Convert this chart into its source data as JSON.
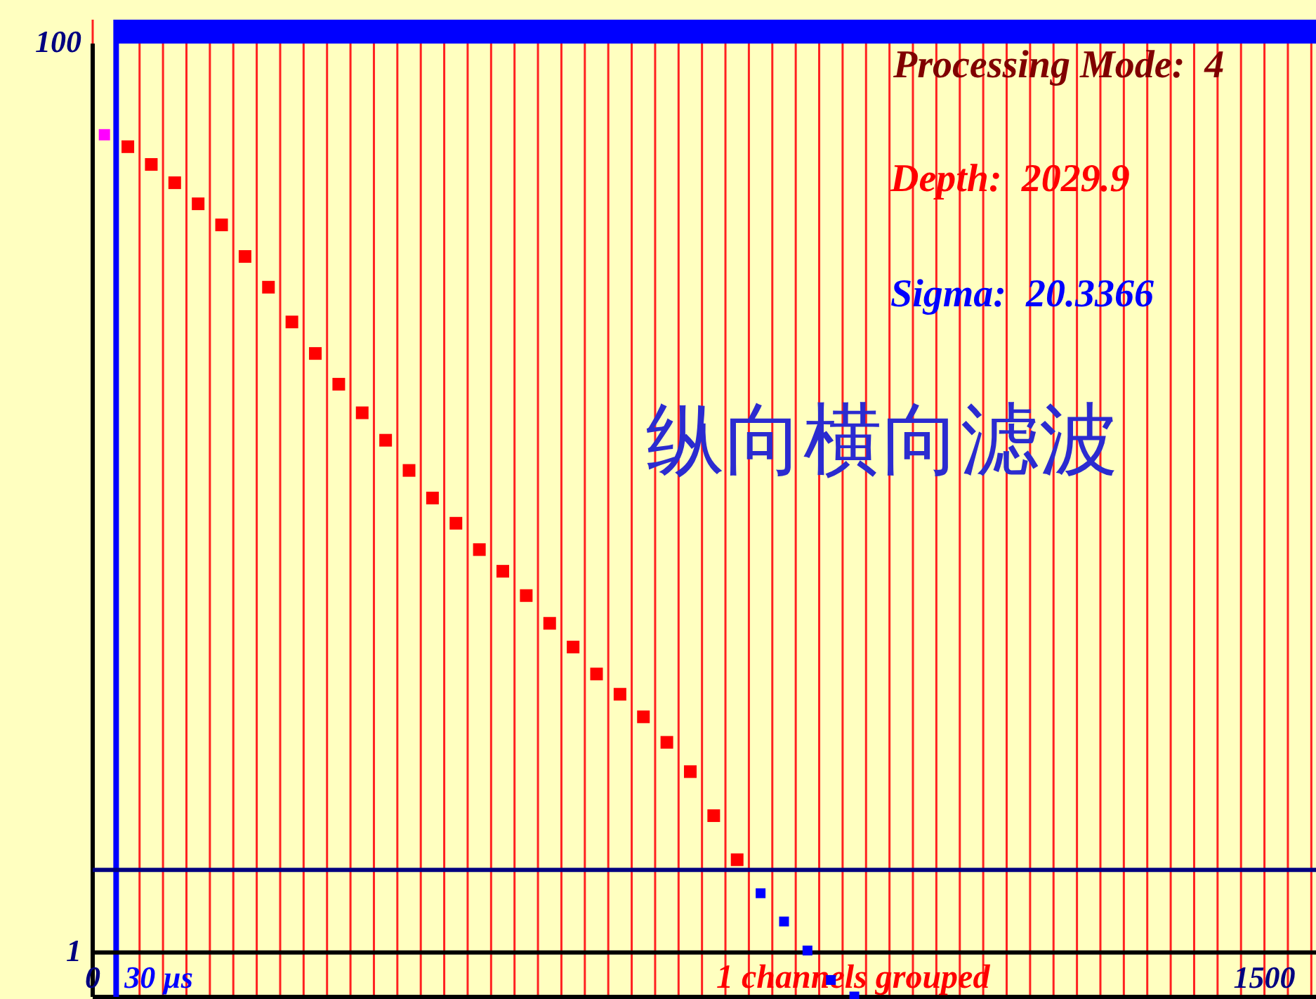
{
  "chart_data": {
    "type": "scatter",
    "title": "纵向横向滤波",
    "annotations": [
      "Processing Mode:  4",
      "Depth:  2029.9",
      "Sigma:  20.3366",
      "1 channels grouped"
    ],
    "xlim": [
      0,
      1566
    ],
    "ylim": [
      0.79,
      100
    ],
    "log": "y",
    "xticks": [
      0,
      {
        "value": 30,
        "label": null
      },
      {
        "value": 60,
        "label": null
      },
      {
        "value": 90,
        "label": null
      },
      {
        "value": 120,
        "label": null
      },
      {
        "value": 150,
        "label": null
      },
      {
        "value": 180,
        "label": null
      },
      {
        "value": 210,
        "label": null
      },
      {
        "value": 240,
        "label": null
      },
      {
        "value": 270,
        "label": null
      },
      {
        "value": 300,
        "label": null
      },
      {
        "value": 330,
        "label": null
      },
      {
        "value": 360,
        "label": null
      },
      {
        "value": 390,
        "label": null
      },
      {
        "value": 420,
        "label": null
      },
      {
        "value": 450,
        "label": null
      },
      {
        "value": 480,
        "label": null
      },
      {
        "value": 510,
        "label": null
      },
      {
        "value": 540,
        "label": null
      },
      {
        "value": 570,
        "label": null
      },
      {
        "value": 600,
        "label": null
      },
      {
        "value": 630,
        "label": null
      },
      {
        "value": 660,
        "label": null
      },
      {
        "value": 690,
        "label": null
      },
      {
        "value": 720,
        "label": null
      },
      {
        "value": 750,
        "label": null
      },
      {
        "value": 780,
        "label": null
      },
      {
        "value": 810,
        "label": null
      },
      {
        "value": 840,
        "label": null
      },
      {
        "value": 870,
        "label": null
      },
      {
        "value": 900,
        "label": null
      },
      {
        "value": 930,
        "label": null
      },
      {
        "value": 960,
        "label": null
      },
      {
        "value": 990,
        "label": null
      },
      {
        "value": 1020,
        "label": null
      },
      {
        "value": 1050,
        "label": null
      },
      {
        "value": 1080,
        "label": null
      },
      {
        "value": 1110,
        "label": null
      },
      {
        "value": 1140,
        "label": null
      },
      {
        "value": 1170,
        "label": null
      },
      {
        "value": 1200,
        "label": null
      },
      {
        "value": 1230,
        "label": null
      },
      {
        "value": 1260,
        "label": null
      },
      {
        "value": 1290,
        "label": null
      },
      {
        "value": 1320,
        "label": null
      },
      {
        "value": 1350,
        "label": null
      },
      {
        "value": 1380,
        "label": null
      },
      {
        "value": 1410,
        "label": null
      },
      {
        "value": 1440,
        "label": null
      },
      {
        "value": 1470,
        "label": null
      },
      1500,
      {
        "value": 1530,
        "label": null
      },
      {
        "value": 1560,
        "label": null
      }
    ],
    "yticks": [
      1,
      100
    ],
    "grid": "x",
    "marker": "square",
    "ref_lines": [
      {
        "axis": "x",
        "value": 30,
        "label": "30 µs",
        "color": "#0000ff"
      },
      {
        "axis": "y",
        "value": 1.52,
        "color": "#000080"
      },
      {
        "axis": "y",
        "value": 1,
        "color": "#000000"
      }
    ],
    "series": [
      {
        "color": "#ff00ff",
        "x": [
          15
        ],
        "values": [
          63
        ]
      },
      {
        "color": "#ff0000",
        "x": [
          45,
          75,
          105,
          135,
          165,
          195,
          225,
          255,
          285,
          315,
          345,
          375,
          405,
          435,
          465,
          495,
          525,
          555,
          585,
          615,
          645,
          675,
          705,
          735,
          765,
          795,
          825
        ],
        "values": [
          59.3,
          54.2,
          49.4,
          44.4,
          39.9,
          34.0,
          29.1,
          24.4,
          20.8,
          17.8,
          15.4,
          13.4,
          11.5,
          10.0,
          8.8,
          7.7,
          6.9,
          6.1,
          5.3,
          4.7,
          4.1,
          3.7,
          3.3,
          2.9,
          2.5,
          2.0,
          1.6
        ]
      },
      {
        "color": "#0000ff",
        "x": [
          855,
          885,
          915,
          945,
          975
        ],
        "values": [
          1.35,
          1.17,
          1.01,
          0.87,
          0.8
        ]
      }
    ]
  }
}
